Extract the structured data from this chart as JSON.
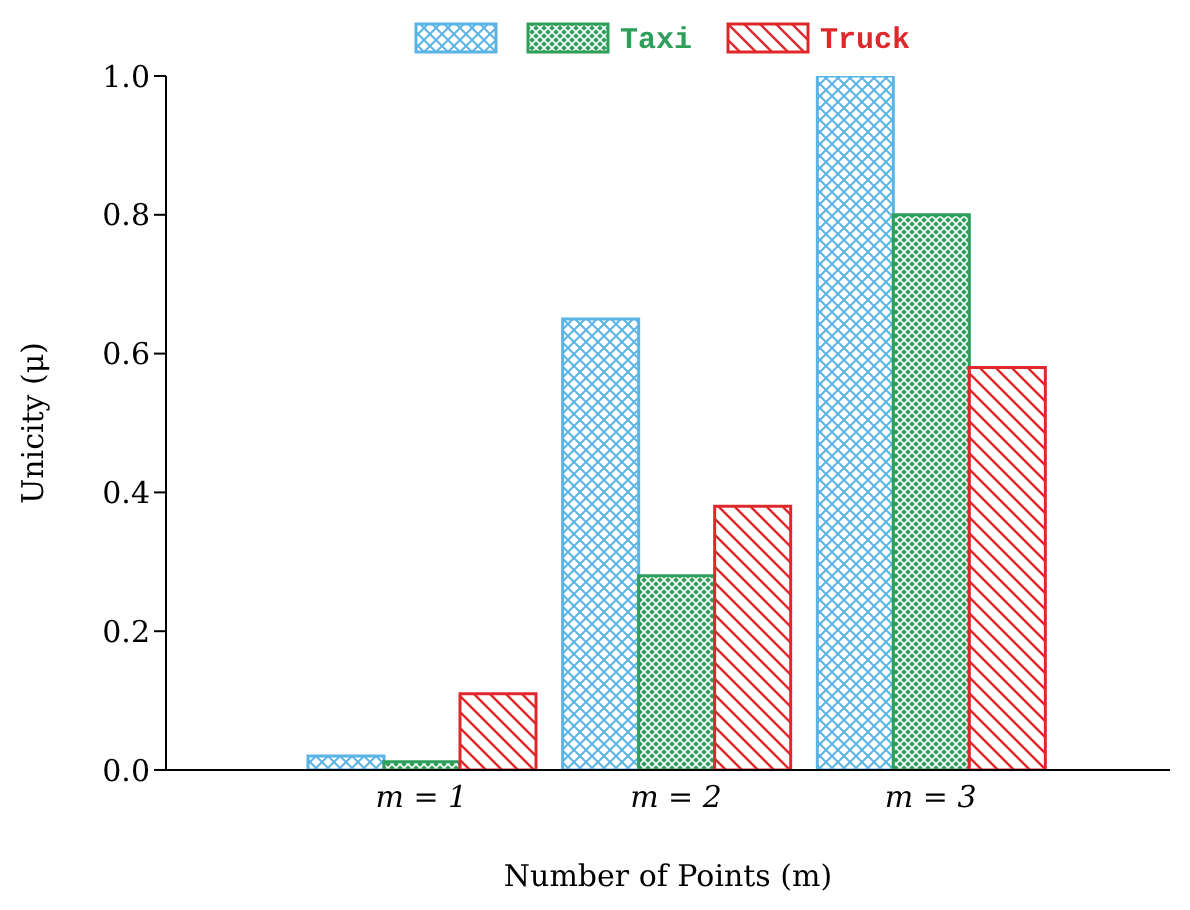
{
  "chart_data": {
    "type": "bar",
    "xlabel": "Number of Points (m)",
    "ylabel": "Unicity (μ)",
    "categories": [
      "m = 1",
      "m = 2",
      "m = 3"
    ],
    "series": [
      {
        "color": "#5ab4e6",
        "values": [
          0.02,
          0.65,
          1.0
        ]
      },
      {
        "name": "Taxi",
        "color": "#2e9e5b",
        "values": [
          0.012,
          0.28,
          0.8
        ]
      },
      {
        "name": "Truck",
        "color": "#e0282c",
        "values": [
          0.11,
          0.38,
          0.58
        ]
      }
    ],
    "ylim": [
      0,
      1
    ],
    "yticks": [
      {
        "value": 0,
        "label": "0.0"
      },
      {
        "value": 0.2,
        "label": "0.2"
      },
      {
        "value": 0.4,
        "label": "0.4"
      },
      {
        "value": 0.6,
        "label": "0.6"
      },
      {
        "value": 0.8,
        "label": "0.8"
      },
      {
        "value": 1,
        "label": "1.0"
      }
    ],
    "grid": false,
    "legend": "top"
  }
}
